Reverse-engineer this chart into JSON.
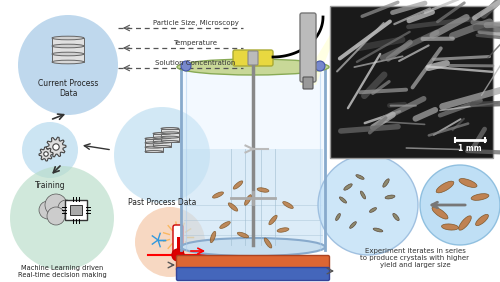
{
  "bg_color": "#ffffff",
  "labels": {
    "current_process": "Current Process\nData",
    "training": "Training",
    "ml": "Machine Learning driven\nReal-time decision making",
    "past_process": "Past Process Data",
    "particle_size": "Particle Size, Microscopy",
    "temperature": "Temperature",
    "solution_conc": "Solution Concentration",
    "caption": "Experiment iterates in series\nto produce crystals with higher\nyield and larger size",
    "scale_bar": "1 mm"
  },
  "colors": {
    "cpd_circle": "#aacce8",
    "tr_circle": "#bbddf0",
    "ml_circle": "#b8ddc8",
    "ppd_circle": "#bbddf0",
    "therm_circle": "#f5c8a8",
    "vessel_glass": "#c8dff0",
    "vessel_body": "#ddeeff",
    "lid_yellow": "#e8d840",
    "lid_green": "#c8d898",
    "base_red": "#dd6633",
    "base_blue": "#4466bb",
    "crystal_brown": "#b87840",
    "crystal_edge": "#7a5020",
    "small_crystal": "#888060",
    "large_crystal": "#c07840",
    "sc_circle": "#c8e4f8",
    "lc_circle": "#b8dcf4",
    "arrow_gray": "#888888",
    "dashed_line": "#555555",
    "flow_arrow": "#333333",
    "db_face": "#e0e0e0",
    "db_edge": "#666666"
  }
}
